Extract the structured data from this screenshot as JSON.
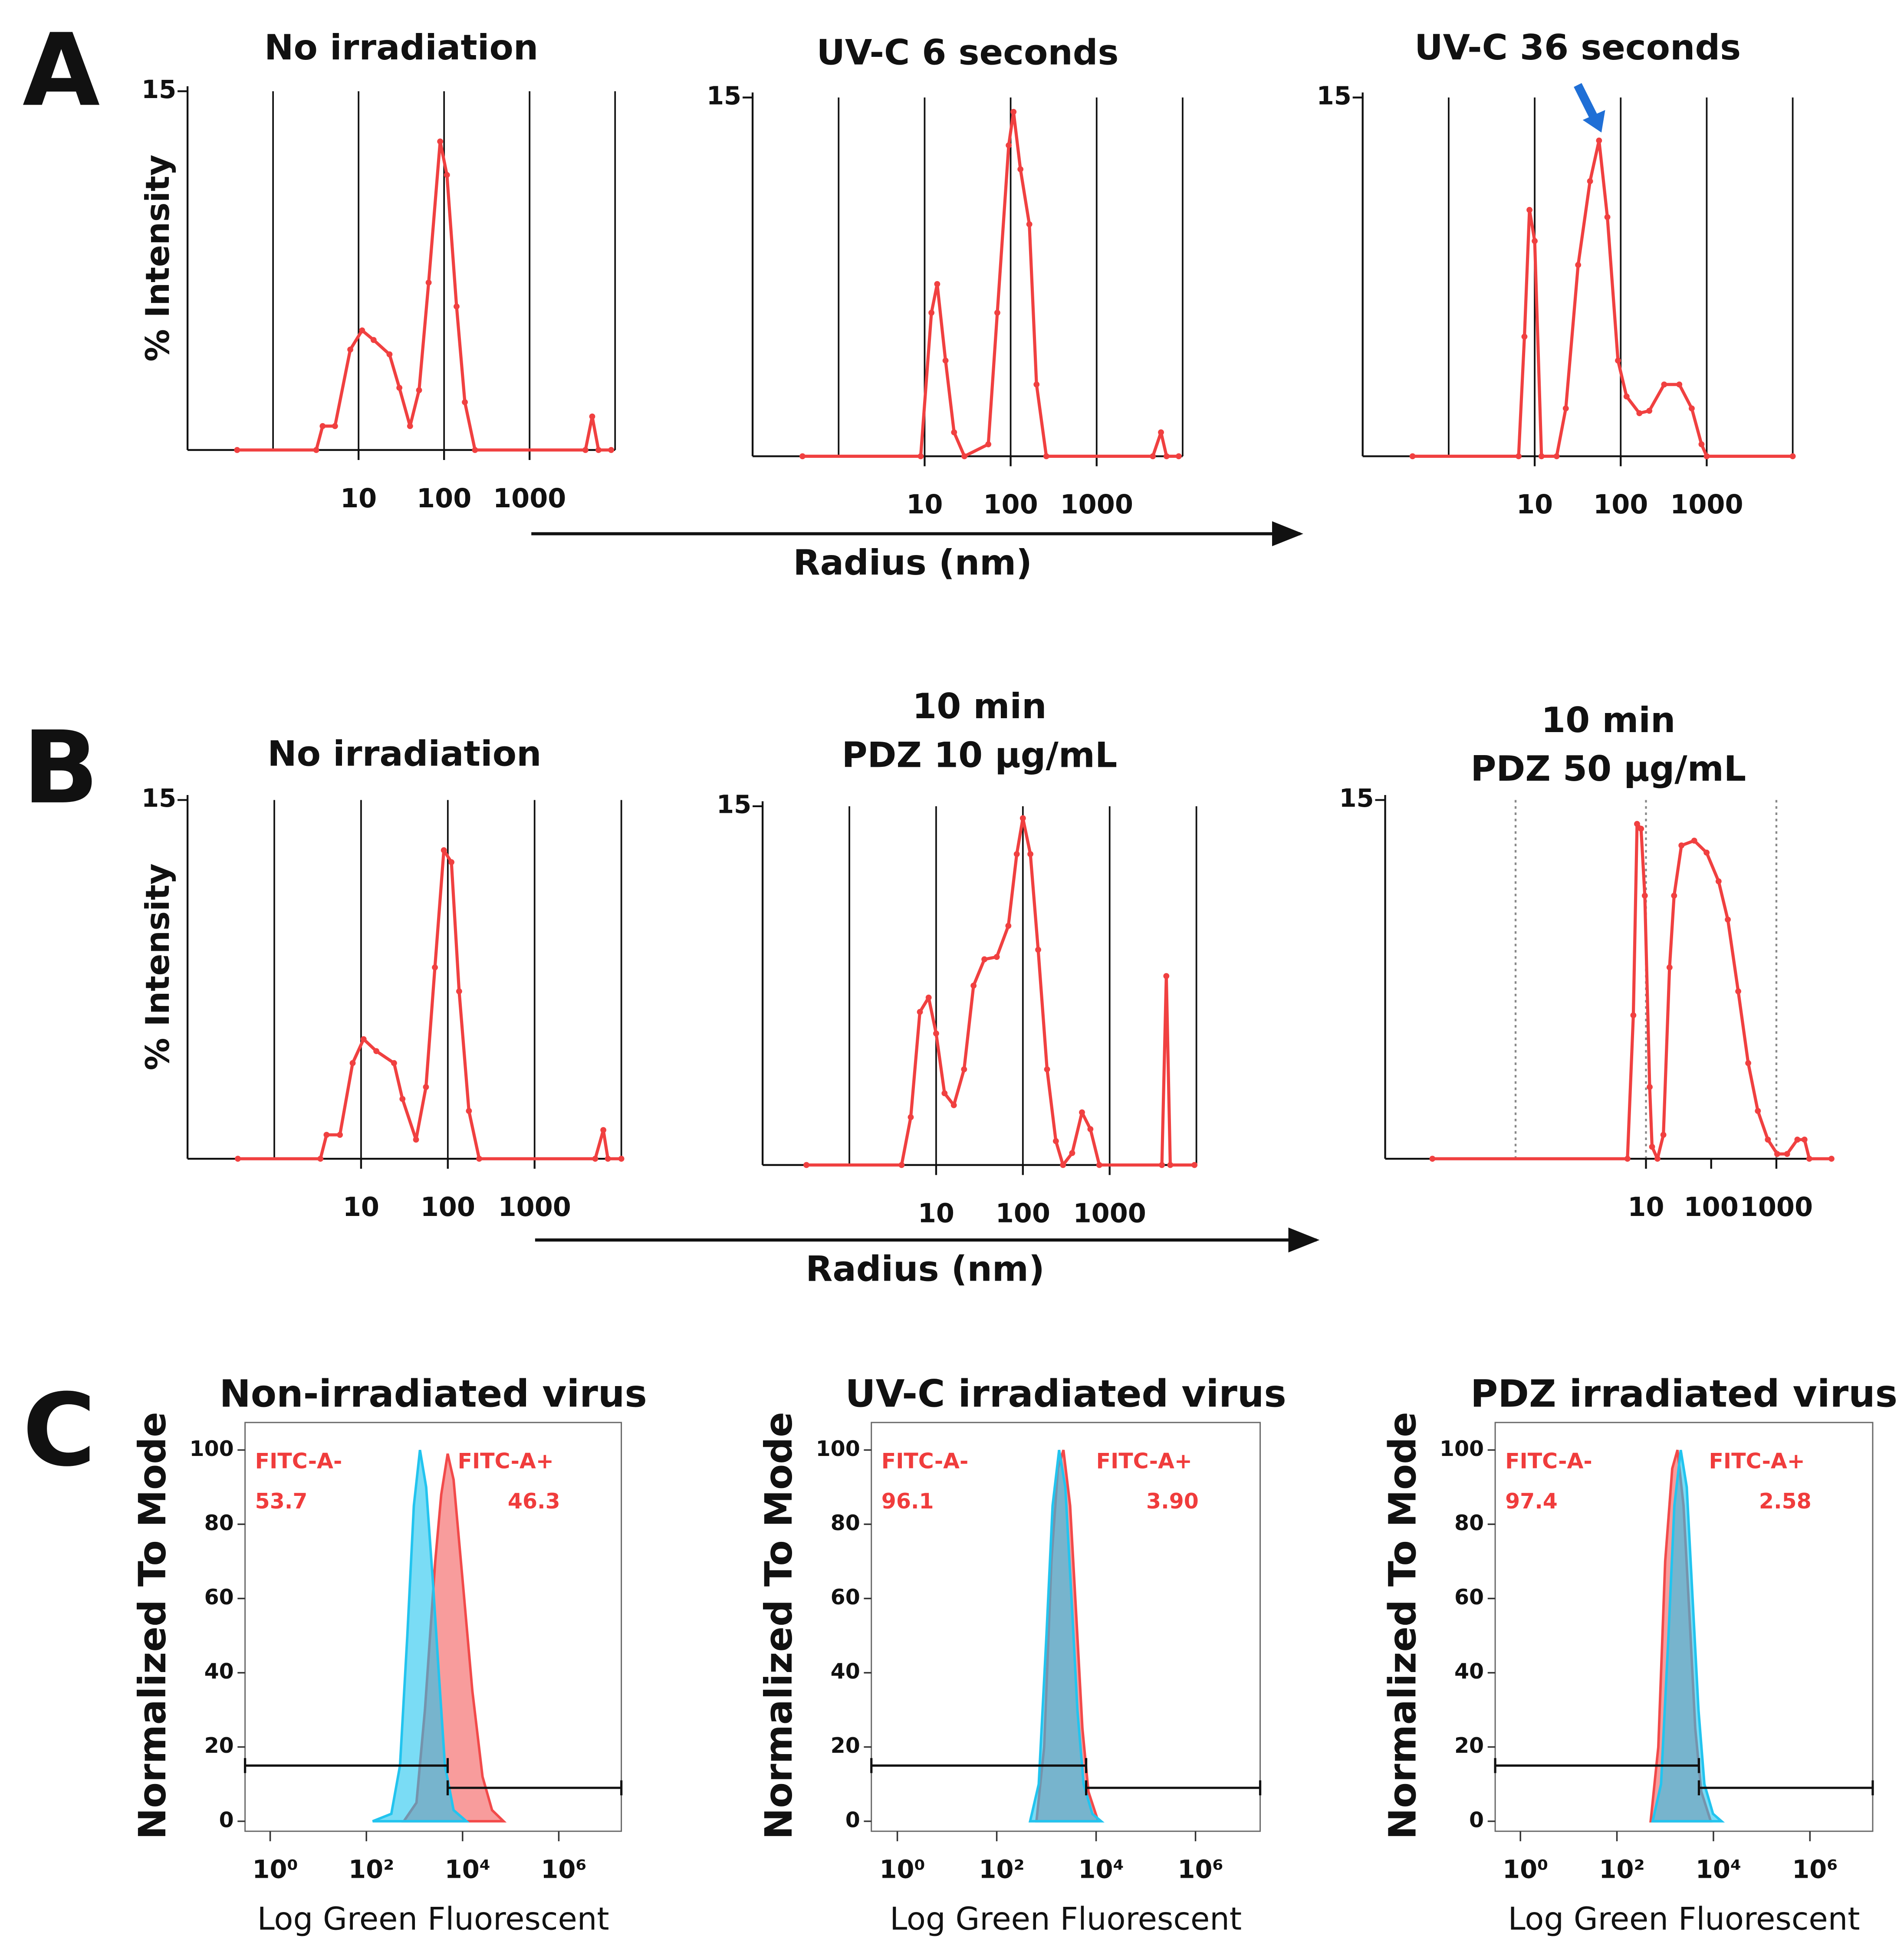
{
  "figure": {
    "panel_labels": [
      "A",
      "B",
      "C"
    ],
    "radius_labels": [
      "Radius (nm)",
      "Radius (nm)"
    ]
  },
  "chart_data": [
    {
      "type": "line",
      "title": "No irradiation",
      "ylabel": "% Intensity",
      "xscale": "log",
      "xlim": [
        0.1,
        10000
      ],
      "ylim": [
        0,
        15
      ],
      "yticks": [
        15
      ],
      "xticks": [
        10,
        100,
        1000
      ],
      "gridlines": [
        1,
        10,
        100,
        1000,
        10000
      ],
      "grid_style": "solid",
      "x": [
        0.38,
        3.2,
        3.8,
        5.3,
        8,
        11,
        15,
        23,
        30,
        40,
        51,
        66,
        90,
        108,
        140,
        175,
        230,
        4500,
        5400,
        6400,
        9000
      ],
      "series": [
        {
          "color": "#f04040",
          "values": [
            0,
            0,
            1,
            1,
            4.2,
            5,
            4.6,
            4,
            2.6,
            1,
            2.5,
            7,
            12.9,
            11.5,
            6,
            2,
            0,
            0,
            1.4,
            0,
            0
          ]
        }
      ]
    },
    {
      "type": "line",
      "title": "UV-C 6 seconds",
      "xscale": "log",
      "xlim": [
        0.1,
        10000
      ],
      "ylim": [
        0,
        15
      ],
      "yticks": [
        15
      ],
      "xticks": [
        10,
        100,
        1000
      ],
      "gridlines": [
        1,
        10,
        100,
        1000,
        10000
      ],
      "grid_style": "solid",
      "x": [
        0.38,
        9,
        12,
        14,
        17.5,
        22,
        29,
        55,
        70,
        95,
        108,
        130,
        165,
        200,
        260,
        4500,
        5600,
        6500,
        9000
      ],
      "series": [
        {
          "color": "#f04040",
          "values": [
            0,
            0,
            6,
            7.2,
            4,
            1,
            0,
            0.5,
            6,
            13,
            14.4,
            12,
            9.7,
            3,
            0,
            0,
            1,
            0,
            0
          ]
        }
      ]
    },
    {
      "type": "line",
      "title": "UV-C 36 seconds",
      "xscale": "log",
      "xlim": [
        0.1,
        10000
      ],
      "ylim": [
        0,
        15
      ],
      "yticks": [
        15
      ],
      "xticks": [
        10,
        100,
        1000
      ],
      "gridlines": [
        1,
        10,
        100,
        1000,
        10000
      ],
      "grid_style": "solid",
      "x": [
        0.38,
        6.5,
        7.6,
        8.7,
        10,
        12,
        18,
        23,
        32,
        44,
        56,
        70,
        93,
        117,
        165,
        215,
        320,
        480,
        670,
        870,
        1000,
        10000
      ],
      "series": [
        {
          "color": "#f04040",
          "values": [
            0,
            0,
            5,
            10.3,
            9,
            0,
            0,
            2,
            8,
            11.5,
            13.2,
            10,
            4,
            2.5,
            1.8,
            1.9,
            3,
            3,
            2,
            0.5,
            0,
            0
          ]
        }
      ]
    },
    {
      "type": "line",
      "title": "No irradiation",
      "ylabel": "% Intensity",
      "xscale": "log",
      "xlim": [
        0.1,
        10000
      ],
      "ylim": [
        0,
        15
      ],
      "yticks": [
        15
      ],
      "xticks": [
        10,
        100,
        1000
      ],
      "gridlines": [
        1,
        10,
        100,
        1000,
        10000
      ],
      "grid_style": "solid",
      "x": [
        0.38,
        3.4,
        4.0,
        5.7,
        8,
        10.7,
        15,
        24,
        30,
        43,
        56,
        71,
        90,
        110,
        135,
        175,
        230,
        5000,
        6200,
        7000,
        10000
      ],
      "series": [
        {
          "color": "#f04040",
          "values": [
            0,
            0,
            1,
            1,
            4,
            5,
            4.5,
            4,
            2.5,
            0.8,
            3,
            8,
            12.9,
            12.4,
            7,
            2,
            0,
            0,
            1.2,
            0,
            0
          ]
        }
      ]
    },
    {
      "type": "line",
      "title": [
        "10 min",
        "PDZ 10 µg/mL"
      ],
      "xscale": "log",
      "xlim": [
        0.1,
        10000
      ],
      "ylim": [
        0,
        15
      ],
      "yticks": [
        15
      ],
      "xticks": [
        10,
        100,
        1000
      ],
      "gridlines": [
        1,
        10,
        100,
        1000,
        10000
      ],
      "grid_style": "solid",
      "x": [
        0.32,
        4.0,
        5.1,
        6.5,
        8.2,
        10,
        12.5,
        16,
        21,
        27,
        36,
        50,
        68,
        85,
        100,
        122,
        150,
        190,
        240,
        290,
        370,
        480,
        600,
        760,
        4000,
        4500,
        5000,
        9500
      ],
      "series": [
        {
          "color": "#f04040",
          "values": [
            0,
            0,
            2,
            6.4,
            7,
            5.5,
            3,
            2.5,
            4,
            7.5,
            8.6,
            8.7,
            10,
            13,
            14.5,
            13,
            9,
            4,
            1,
            0,
            0.5,
            2.2,
            1.5,
            0,
            0,
            7.9,
            0,
            0
          ]
        }
      ]
    },
    {
      "type": "line",
      "title": [
        "10 min",
        "PDZ 50 µg/mL"
      ],
      "xscale": "log",
      "xlim": [
        0.001,
        7000
      ],
      "ylim": [
        0,
        15
      ],
      "yticks": [
        15
      ],
      "xticks": [
        10,
        100,
        1000
      ],
      "gridlines": [
        0.1,
        10,
        1000
      ],
      "grid_style": "dotted",
      "x": [
        0.0053,
        5.2,
        6.4,
        7.3,
        8.4,
        9.6,
        11.4,
        12.4,
        15,
        18.5,
        23,
        27,
        35,
        55,
        85,
        130,
        180,
        260,
        370,
        520,
        740,
        1030,
        1460,
        2100,
        2700,
        3200,
        7000
      ],
      "series": [
        {
          "color": "#f04040",
          "values": [
            0,
            0,
            6,
            14,
            13.8,
            11,
            3,
            0.5,
            0,
            1,
            8,
            11,
            13.1,
            13.3,
            12.8,
            11.6,
            10,
            7,
            4,
            2,
            0.8,
            0.2,
            0.2,
            0.8,
            0.8,
            0,
            0
          ]
        }
      ]
    },
    {
      "type": "area",
      "title": "Non-irradiated virus",
      "ylabel": "Normalized To Mode",
      "xlabel": "Log Green Fluorescent",
      "xscale": "log",
      "xlim": [
        0.3,
        20000000
      ],
      "ylim": [
        0,
        100
      ],
      "yticks": [
        0,
        20,
        40,
        60,
        80,
        100
      ],
      "xticks": [
        {
          "value": 1,
          "label": "10⁰"
        },
        {
          "value": 100,
          "label": "10²"
        },
        {
          "value": 10000,
          "label": "10⁴"
        },
        {
          "value": 1000000,
          "label": "10⁶"
        }
      ],
      "series": [
        {
          "color": "#f24a4a",
          "x": [
            600,
            1100,
            1650,
            2700,
            3600,
            4900,
            6500,
            10000,
            16000,
            26000,
            41000,
            71000
          ],
          "values": [
            0,
            5,
            30,
            70,
            88,
            99,
            92,
            65,
            35,
            12,
            3,
            0
          ]
        },
        {
          "color": "#22c4ef",
          "x": [
            135,
            330,
            500,
            710,
            970,
            1300,
            1750,
            2400,
            3200,
            4300,
            6500,
            12000
          ],
          "values": [
            0,
            2,
            15,
            50,
            85,
            100,
            90,
            65,
            40,
            15,
            3,
            0
          ]
        }
      ],
      "gates": [
        {
          "name": "FITC-A-",
          "percent": 53.7,
          "x": [
            0.3,
            4900
          ],
          "y": 15
        },
        {
          "name": "FITC-A+",
          "percent": 46.3,
          "x": [
            4900,
            20000000
          ],
          "y": 9
        }
      ]
    },
    {
      "type": "area",
      "title": "UV-C irradiated virus",
      "ylabel": "Normalized To Mode",
      "xlabel": "Log Green Fluorescent",
      "xscale": "log",
      "xlim": [
        0.3,
        20000000
      ],
      "ylim": [
        0,
        100
      ],
      "yticks": [
        0,
        20,
        40,
        60,
        80,
        100
      ],
      "xticks": [
        {
          "value": 1,
          "label": "10⁰"
        },
        {
          "value": 100,
          "label": "10²"
        },
        {
          "value": 10000,
          "label": "10⁴"
        },
        {
          "value": 1000000,
          "label": "10⁶"
        }
      ],
      "series": [
        {
          "color": "#f24a4a",
          "x": [
            630,
            900,
            1260,
            1700,
            2200,
            3000,
            4000,
            5300,
            7000,
            11000
          ],
          "values": [
            0,
            20,
            70,
            95,
            100,
            85,
            55,
            25,
            8,
            0
          ]
        },
        {
          "color": "#22c4ef",
          "x": [
            470,
            700,
            1000,
            1330,
            1800,
            2400,
            3200,
            4200,
            5600,
            8400,
            12600
          ],
          "values": [
            0,
            10,
            50,
            85,
            100,
            90,
            60,
            30,
            10,
            2,
            0
          ]
        }
      ],
      "gates": [
        {
          "name": "FITC-A-",
          "percent": 96.1,
          "x": [
            0.3,
            6300
          ],
          "y": 15
        },
        {
          "name": "FITC-A+",
          "percent": 3.9,
          "percent_label": "3.90",
          "x": [
            6300,
            20000000
          ],
          "y": 9
        }
      ]
    },
    {
      "type": "area",
      "title": "PDZ irradiated virus",
      "ylabel": "Normalized To Mode",
      "xlabel": "Log Green Fluorescent",
      "xscale": "log",
      "xlim": [
        0.3,
        20000000
      ],
      "ylim": [
        0,
        100
      ],
      "yticks": [
        0,
        20,
        40,
        60,
        80,
        100
      ],
      "xticks": [
        {
          "value": 1,
          "label": "10⁰"
        },
        {
          "value": 100,
          "label": "10²"
        },
        {
          "value": 10000,
          "label": "10⁴"
        },
        {
          "value": 1000000,
          "label": "10⁶"
        }
      ],
      "series": [
        {
          "color": "#f24a4a",
          "x": [
            500,
            720,
            1000,
            1400,
            1800,
            2400,
            3200,
            4200,
            5600,
            8800
          ],
          "values": [
            0,
            20,
            70,
            95,
            100,
            85,
            55,
            25,
            8,
            0
          ]
        },
        {
          "color": "#22c4ef",
          "x": [
            550,
            820,
            1170,
            1550,
            2100,
            2800,
            3700,
            4900,
            6500,
            9800,
            14700
          ],
          "values": [
            0,
            10,
            50,
            85,
            100,
            90,
            60,
            30,
            10,
            2,
            0
          ]
        }
      ],
      "gates": [
        {
          "name": "FITC-A-",
          "percent": 97.4,
          "x": [
            0.3,
            5000
          ],
          "y": 15
        },
        {
          "name": "FITC-A+",
          "percent": 2.58,
          "x": [
            5000,
            20000000
          ],
          "y": 9
        }
      ]
    }
  ]
}
